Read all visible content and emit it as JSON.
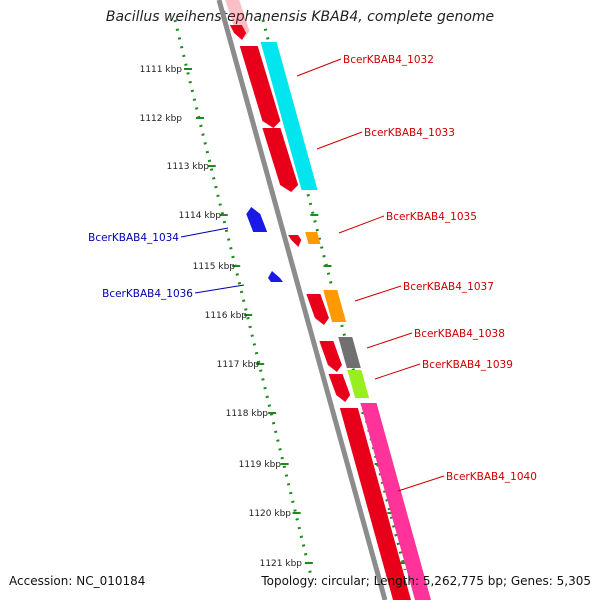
{
  "title": "Bacillus weihenstephanensis KBAB4, complete genome",
  "footer": {
    "accession": "Accession: NC_010184",
    "topology": "Topology: circular;",
    "length": "Length: 5,262,775 bp;",
    "genes": "Genes: 5,305"
  },
  "colors": {
    "backbone": "#8c8c8c",
    "tick": "#1f8a1f",
    "forward_cds": "#e8001a",
    "reverse_cds": "#1a1ae6",
    "label_forward": "#cc0000",
    "label_reverse": "#0000aa",
    "cyan": "#00e5ee",
    "orange": "#ff9900",
    "grey": "#707070",
    "lime": "#99ee22",
    "pink": "#ff3399"
  },
  "chart_data": {
    "type": "genome_map",
    "positions": [
      "1111 kbp",
      "1112 kbp",
      "1113 kbp",
      "1114 kbp",
      "1115 kbp",
      "1116 kbp",
      "1117 kbp",
      "1118 kbp",
      "1119 kbp",
      "1120 kbp",
      "1121 kbp"
    ],
    "gene_labels": [
      {
        "name": "BcerKBAB4_1032",
        "strand": "forward"
      },
      {
        "name": "BcerKBAB4_1033",
        "strand": "forward"
      },
      {
        "name": "BcerKBAB4_1034",
        "strand": "reverse"
      },
      {
        "name": "BcerKBAB4_1035",
        "strand": "forward"
      },
      {
        "name": "BcerKBAB4_1036",
        "strand": "reverse"
      },
      {
        "name": "BcerKBAB4_1037",
        "strand": "forward"
      },
      {
        "name": "BcerKBAB4_1038",
        "strand": "forward"
      },
      {
        "name": "BcerKBAB4_1039",
        "strand": "forward"
      },
      {
        "name": "BcerKBAB4_1040",
        "strand": "forward"
      }
    ]
  }
}
